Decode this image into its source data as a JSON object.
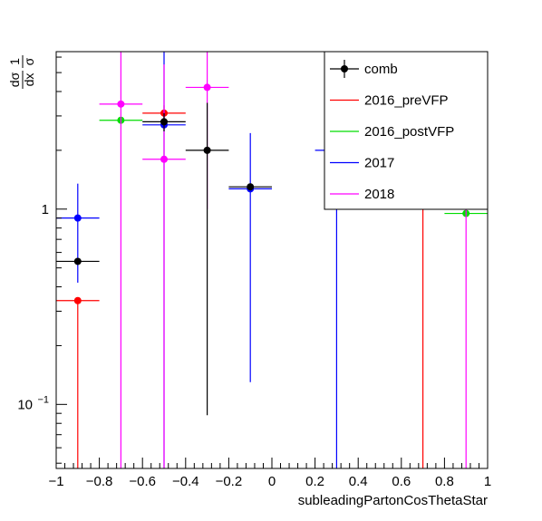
{
  "chart_data": {
    "type": "scatter",
    "title": "",
    "xlabel": "subleadingPartonCosThetaStar",
    "ylabel": {
      "num": "1",
      "den": "σ",
      "dnum": "dσ",
      "dden": "dx"
    },
    "x_range": [
      -1,
      1
    ],
    "y_range": [
      0.047,
      6.4
    ],
    "y_scale": "log",
    "grid": false,
    "legend_position": "top-right",
    "x_ticks": [
      {
        "v": -1,
        "label": "−1"
      },
      {
        "v": -0.8,
        "label": "−0.8"
      },
      {
        "v": -0.6,
        "label": "−0.6"
      },
      {
        "v": -0.4,
        "label": "−0.4"
      },
      {
        "v": -0.2,
        "label": "−0.2"
      },
      {
        "v": 0,
        "label": "0"
      },
      {
        "v": 0.2,
        "label": "0.2"
      },
      {
        "v": 0.4,
        "label": "0.4"
      },
      {
        "v": 0.6,
        "label": "0.6"
      },
      {
        "v": 0.8,
        "label": "0.8"
      },
      {
        "v": 1,
        "label": "1"
      }
    ],
    "y_ticks": [
      {
        "v": 1,
        "label": "1",
        "sup": ""
      },
      {
        "v": 0.1,
        "label": "10",
        "sup": "−1"
      }
    ],
    "series": [
      {
        "name": "2016_preVFP",
        "color": "#ff0000",
        "points": [
          {
            "x": -0.9,
            "xerr": 0.1,
            "y": 0.34,
            "ylo": 0.01,
            "yhi": 0.34
          },
          {
            "x": -0.5,
            "xerr": 0.1,
            "y": 3.1,
            "ylo": 2.8,
            "yhi": 3.4
          },
          {
            "x": 0.7,
            "xerr": 0.1,
            "y": 3.0,
            "ylo": 0.01,
            "yhi": 6.4
          }
        ]
      },
      {
        "name": "2016_postVFP",
        "color": "#00dd00",
        "points": [
          {
            "x": -0.7,
            "xerr": 0.1,
            "y": 2.85,
            "ylo": 2.85,
            "yhi": 2.85
          },
          {
            "x": 0.9,
            "xerr": 0.1,
            "y": 0.95,
            "ylo": 0.95,
            "yhi": 0.95
          }
        ]
      },
      {
        "name": "2017",
        "color": "#0000ff",
        "points": [
          {
            "x": -0.9,
            "xerr": 0.1,
            "y": 0.9,
            "ylo": 0.42,
            "yhi": 1.35
          },
          {
            "x": -0.5,
            "xerr": 0.1,
            "y": 2.7,
            "ylo": 0.01,
            "yhi": 7.9
          },
          {
            "x": -0.1,
            "xerr": 0.1,
            "y": 1.27,
            "ylo": 0.13,
            "yhi": 2.45
          },
          {
            "x": 0.3,
            "xerr": 0.1,
            "y": 2.0,
            "ylo": 0.01,
            "yhi": 2.0
          }
        ]
      },
      {
        "name": "2018",
        "color": "#ff00ff",
        "points": [
          {
            "x": -0.7,
            "xerr": 0.1,
            "y": 3.45,
            "ylo": 0.01,
            "yhi": 7.0
          },
          {
            "x": -0.5,
            "xerr": 0.1,
            "y": 1.8,
            "ylo": 0.01,
            "yhi": 5.5
          },
          {
            "x": -0.3,
            "xerr": 0.1,
            "y": 4.2,
            "ylo": 1.0,
            "yhi": 8.5
          },
          {
            "x": 0.9,
            "xerr": 0.1,
            "y": 5.0,
            "ylo": 0.01,
            "yhi": 7.0
          }
        ]
      },
      {
        "name": "comb",
        "color": "#000000",
        "points": [
          {
            "x": -0.9,
            "xerr": 0.1,
            "y": 0.54,
            "ylo": 0.54,
            "yhi": 0.54
          },
          {
            "x": -0.5,
            "xerr": 0.1,
            "y": 2.8,
            "ylo": 2.5,
            "yhi": 3.1
          },
          {
            "x": -0.3,
            "xerr": 0.1,
            "y": 2.0,
            "ylo": 0.088,
            "yhi": 3.5
          },
          {
            "x": -0.1,
            "xerr": 0.1,
            "y": 1.3,
            "ylo": 1.3,
            "yhi": 1.3
          }
        ]
      }
    ],
    "legend": [
      {
        "label": "comb",
        "color": "#000000",
        "marker": true
      },
      {
        "label": "2016_preVFP",
        "color": "#ff0000",
        "marker": false
      },
      {
        "label": "2016_postVFP",
        "color": "#00dd00",
        "marker": false
      },
      {
        "label": "2017",
        "color": "#0000ff",
        "marker": false
      },
      {
        "label": "2018",
        "color": "#ff00ff",
        "marker": false
      }
    ]
  }
}
